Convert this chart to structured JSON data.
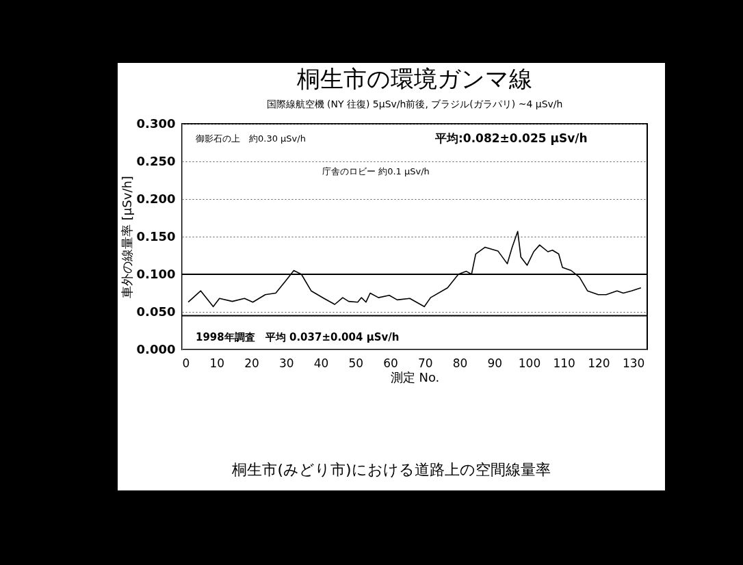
{
  "chart_data": {
    "type": "line",
    "title": "桐生市の環境ガンマ線",
    "subtitle": "国際線航空機 (NY 往復) 5μSv/h前後, ブラジル(ガラパリ) ~4 μSv/h",
    "xlabel": "測定 No.",
    "ylabel": "車外の線量率 [μSv/h]",
    "x": [
      1.8,
      5.4,
      9,
      10.8,
      14.5,
      18,
      20.4,
      24,
      27,
      30,
      32.2,
      34.4,
      37.2,
      40.9,
      44,
      46.3,
      48,
      50.6,
      51.7,
      53,
      54.2,
      56.6,
      59.7,
      62,
      65.6,
      69.8,
      71.6,
      76.5,
      79.6,
      81.9,
      83.4,
      84.6,
      87.3,
      91,
      93.7,
      95.1,
      96.7,
      97.6,
      99.4,
      101.3,
      103,
      105.4,
      106.7,
      108.5,
      109.6,
      112.1,
      114.5,
      116.8,
      119.9,
      122.2,
      125.3,
      127.1,
      129.5,
      132.2
    ],
    "values": [
      0.063,
      0.078,
      0.057,
      0.068,
      0.064,
      0.068,
      0.063,
      0.073,
      0.075,
      0.092,
      0.105,
      0.1,
      0.078,
      0.068,
      0.06,
      0.069,
      0.064,
      0.063,
      0.069,
      0.063,
      0.075,
      0.069,
      0.072,
      0.066,
      0.068,
      0.057,
      0.069,
      0.082,
      0.1,
      0.104,
      0.1,
      0.127,
      0.136,
      0.131,
      0.114,
      0.136,
      0.157,
      0.123,
      0.112,
      0.13,
      0.139,
      0.13,
      0.132,
      0.127,
      0.109,
      0.105,
      0.096,
      0.078,
      0.073,
      0.073,
      0.078,
      0.075,
      0.078,
      0.082
    ],
    "color": "#000000",
    "line_style": "solid",
    "xlim": [
      0,
      134
    ],
    "xticks": [
      0,
      10,
      20,
      30,
      40,
      50,
      60,
      70,
      80,
      90,
      100,
      110,
      120,
      130
    ],
    "ylim": [
      0,
      0.3
    ],
    "yticks": [
      {
        "value": 0,
        "label": "0.000"
      },
      {
        "value": 0.05,
        "label": "0.050"
      },
      {
        "value": 0.1,
        "label": "0.100"
      },
      {
        "value": 0.15,
        "label": "0.150"
      },
      {
        "value": 0.2,
        "label": "0.200"
      },
      {
        "value": 0.25,
        "label": "0.250"
      },
      {
        "value": 0.3,
        "label": "0.300"
      }
    ],
    "grid": "y",
    "ref_lines": [
      {
        "axis": "y",
        "value": 0.1,
        "color": "#000000"
      },
      {
        "axis": "y",
        "value": 0.045,
        "label": "1998年調査　平均 0.037±0.004 μSv/h",
        "color": "#000000"
      }
    ],
    "annotations": [
      "御影石の上　約0.30 μSv/h",
      "平均:0.082±0.025 μSv/h",
      "庁舎のロビー 約0.1 μSv/h",
      "桐生市(みどり市)における道路上の空間線量率"
    ]
  }
}
